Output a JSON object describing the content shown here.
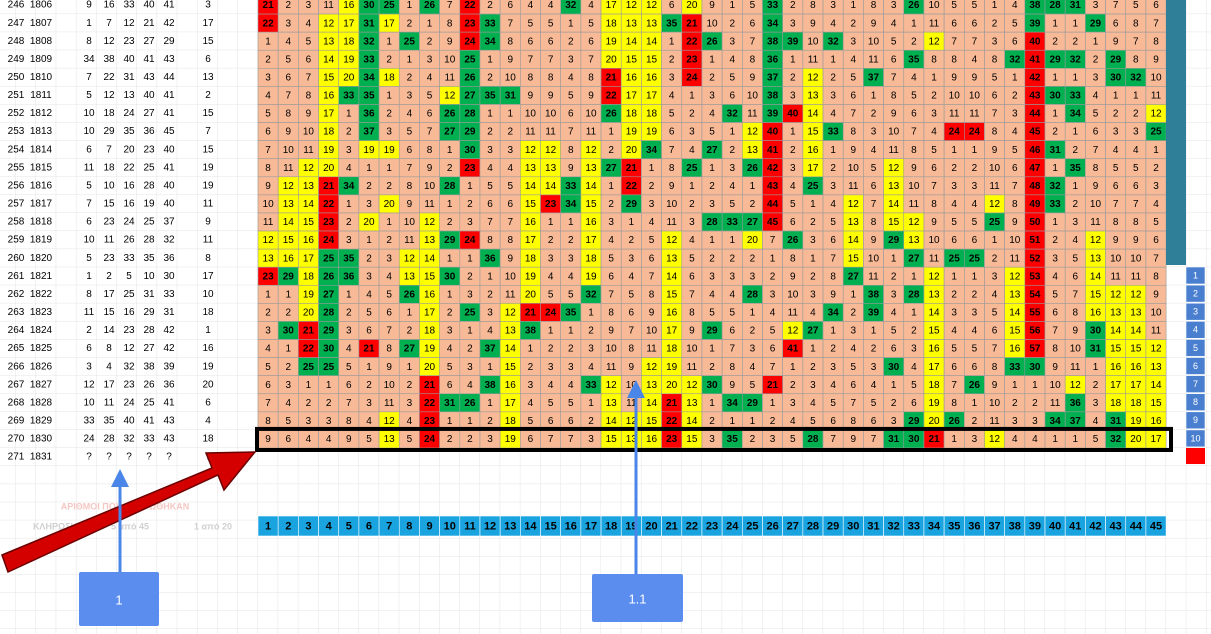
{
  "rows": [
    {
      "row": "246",
      "draw": "1806",
      "numbers": [
        9,
        16,
        33,
        40,
        41
      ],
      "joker": 3,
      "delays": [
        21,
        2,
        3,
        11,
        16,
        30,
        25,
        1,
        26,
        7,
        22,
        2,
        6,
        4,
        4,
        32,
        4,
        17,
        12,
        12,
        6,
        20,
        9,
        1,
        5,
        33,
        2,
        8,
        3,
        1,
        8,
        3,
        26,
        10,
        5,
        5,
        1,
        4,
        38,
        28,
        31,
        3,
        7,
        5,
        6
      ]
    },
    {
      "row": "247",
      "draw": "1807",
      "numbers": [
        1,
        7,
        12,
        21,
        42
      ],
      "joker": 17,
      "delays": [
        22,
        3,
        4,
        12,
        17,
        31,
        17,
        2,
        1,
        8,
        23,
        33,
        7,
        5,
        5,
        1,
        5,
        18,
        13,
        13,
        35,
        21,
        10,
        2,
        6,
        34,
        3,
        9,
        4,
        2,
        9,
        4,
        1,
        11,
        6,
        6,
        2,
        5,
        39,
        1,
        1,
        29,
        6,
        8,
        7
      ]
    },
    {
      "row": "248",
      "draw": "1808",
      "numbers": [
        8,
        12,
        23,
        27,
        29
      ],
      "joker": 15,
      "delays": [
        1,
        4,
        5,
        13,
        18,
        32,
        1,
        25,
        2,
        9,
        24,
        34,
        8,
        6,
        6,
        2,
        6,
        19,
        14,
        14,
        1,
        22,
        26,
        3,
        7,
        38,
        39,
        10,
        32,
        3,
        10,
        5,
        2,
        12,
        7,
        7,
        3,
        6,
        40,
        2,
        2,
        1,
        9,
        7,
        8
      ]
    },
    {
      "row": "249",
      "draw": "1809",
      "numbers": [
        34,
        38,
        40,
        41,
        43
      ],
      "joker": 6,
      "delays": [
        2,
        5,
        6,
        14,
        19,
        33,
        2,
        1,
        3,
        10,
        25,
        1,
        9,
        7,
        7,
        3,
        7,
        20,
        15,
        15,
        2,
        23,
        1,
        4,
        8,
        36,
        1,
        11,
        1,
        4,
        11,
        6,
        35,
        8,
        8,
        4,
        8,
        32,
        41,
        29,
        32,
        2,
        29,
        8,
        9
      ]
    },
    {
      "row": "250",
      "draw": "1810",
      "numbers": [
        7,
        22,
        31,
        43,
        44
      ],
      "joker": 13,
      "delays": [
        3,
        6,
        7,
        15,
        20,
        34,
        18,
        2,
        4,
        11,
        26,
        2,
        10,
        8,
        8,
        4,
        8,
        21,
        16,
        16,
        3,
        24,
        2,
        5,
        9,
        37,
        2,
        12,
        2,
        5,
        37,
        7,
        4,
        1,
        9,
        9,
        5,
        1,
        42,
        1,
        1,
        3,
        30,
        32,
        10
      ]
    },
    {
      "row": "251",
      "draw": "1811",
      "numbers": [
        5,
        12,
        13,
        40,
        41
      ],
      "joker": 2,
      "delays": [
        4,
        7,
        8,
        16,
        33,
        35,
        1,
        3,
        5,
        12,
        27,
        35,
        31,
        9,
        9,
        5,
        9,
        22,
        17,
        17,
        4,
        1,
        3,
        6,
        10,
        38,
        3,
        13,
        3,
        6,
        1,
        8,
        5,
        2,
        10,
        10,
        6,
        2,
        43,
        30,
        33,
        4,
        1,
        1,
        11
      ]
    },
    {
      "row": "252",
      "draw": "1812",
      "numbers": [
        10,
        18,
        24,
        27,
        41
      ],
      "joker": 15,
      "delays": [
        5,
        8,
        9,
        17,
        1,
        36,
        2,
        4,
        6,
        26,
        28,
        1,
        1,
        10,
        10,
        6,
        10,
        26,
        18,
        18,
        5,
        2,
        4,
        32,
        11,
        39,
        40,
        14,
        4,
        7,
        2,
        9,
        6,
        3,
        11,
        11,
        7,
        3,
        44,
        1,
        34,
        5,
        2,
        2,
        12
      ]
    },
    {
      "row": "253",
      "draw": "1813",
      "numbers": [
        10,
        29,
        35,
        36,
        45
      ],
      "joker": 7,
      "delays": [
        6,
        9,
        10,
        18,
        2,
        37,
        3,
        5,
        7,
        27,
        29,
        2,
        2,
        11,
        11,
        7,
        11,
        1,
        19,
        19,
        6,
        3,
        5,
        1,
        12,
        40,
        1,
        15,
        33,
        8,
        3,
        10,
        7,
        4,
        24,
        24,
        8,
        4,
        45,
        2,
        1,
        6,
        3,
        3,
        25
      ]
    },
    {
      "row": "254",
      "draw": "1814",
      "numbers": [
        6,
        7,
        20,
        23,
        40
      ],
      "joker": 15,
      "delays": [
        7,
        10,
        11,
        19,
        3,
        19,
        19,
        6,
        8,
        1,
        30,
        3,
        3,
        12,
        12,
        8,
        12,
        2,
        20,
        34,
        7,
        4,
        27,
        2,
        13,
        41,
        2,
        16,
        1,
        9,
        4,
        11,
        8,
        5,
        1,
        1,
        9,
        5,
        46,
        31,
        2,
        7,
        4,
        4,
        1
      ]
    },
    {
      "row": "255",
      "draw": "1815",
      "numbers": [
        11,
        18,
        22,
        25,
        41
      ],
      "joker": 19,
      "delays": [
        8,
        11,
        12,
        20,
        4,
        1,
        1,
        7,
        9,
        2,
        23,
        4,
        4,
        13,
        13,
        9,
        13,
        27,
        21,
        1,
        8,
        25,
        1,
        3,
        26,
        42,
        3,
        17,
        2,
        10,
        5,
        12,
        9,
        6,
        2,
        2,
        10,
        6,
        47,
        1,
        35,
        8,
        5,
        5,
        2
      ]
    },
    {
      "row": "256",
      "draw": "1816",
      "numbers": [
        5,
        10,
        16,
        28,
        40
      ],
      "joker": 19,
      "delays": [
        9,
        12,
        13,
        21,
        34,
        2,
        2,
        8,
        10,
        28,
        1,
        5,
        5,
        14,
        14,
        33,
        14,
        1,
        22,
        2,
        9,
        1,
        2,
        4,
        1,
        43,
        4,
        25,
        3,
        11,
        6,
        13,
        10,
        7,
        3,
        3,
        11,
        7,
        48,
        32,
        1,
        9,
        6,
        6,
        3
      ]
    },
    {
      "row": "257",
      "draw": "1817",
      "numbers": [
        7,
        15,
        16,
        19,
        40
      ],
      "joker": 11,
      "delays": [
        10,
        13,
        14,
        22,
        1,
        3,
        20,
        9,
        11,
        1,
        2,
        6,
        6,
        15,
        23,
        34,
        15,
        2,
        29,
        3,
        10,
        2,
        3,
        5,
        2,
        44,
        5,
        1,
        4,
        12,
        7,
        14,
        11,
        8,
        4,
        4,
        12,
        8,
        49,
        33,
        2,
        10,
        7,
        7,
        4
      ]
    },
    {
      "row": "258",
      "draw": "1818",
      "numbers": [
        6,
        23,
        24,
        25,
        37
      ],
      "joker": 9,
      "delays": [
        11,
        14,
        15,
        23,
        2,
        20,
        1,
        10,
        12,
        2,
        3,
        7,
        7,
        16,
        1,
        1,
        16,
        3,
        1,
        4,
        11,
        3,
        28,
        33,
        27,
        45,
        6,
        2,
        5,
        13,
        8,
        15,
        12,
        9,
        5,
        5,
        25,
        9,
        50,
        1,
        3,
        11,
        8,
        8,
        5
      ]
    },
    {
      "row": "259",
      "draw": "1819",
      "numbers": [
        10,
        11,
        26,
        28,
        32
      ],
      "joker": 11,
      "delays": [
        12,
        15,
        16,
        24,
        3,
        1,
        2,
        11,
        13,
        29,
        24,
        8,
        8,
        17,
        2,
        2,
        17,
        4,
        2,
        5,
        12,
        4,
        1,
        1,
        20,
        7,
        26,
        3,
        6,
        14,
        9,
        29,
        13,
        10,
        6,
        6,
        1,
        10,
        51,
        2,
        4,
        12,
        9,
        9,
        6
      ]
    },
    {
      "row": "260",
      "draw": "1820",
      "numbers": [
        5,
        23,
        33,
        35,
        36
      ],
      "joker": 8,
      "delays": [
        13,
        16,
        17,
        25,
        35,
        2,
        3,
        12,
        14,
        1,
        1,
        36,
        9,
        18,
        3,
        3,
        18,
        5,
        3,
        6,
        13,
        5,
        2,
        2,
        2,
        1,
        8,
        1,
        7,
        15,
        10,
        1,
        27,
        11,
        25,
        25,
        2,
        11,
        52,
        3,
        5,
        13,
        10,
        10,
        7
      ]
    },
    {
      "row": "261",
      "draw": "1821",
      "numbers": [
        1,
        2,
        5,
        10,
        30
      ],
      "joker": 17,
      "delays": [
        23,
        29,
        18,
        26,
        36,
        3,
        4,
        13,
        15,
        30,
        2,
        1,
        10,
        19,
        4,
        4,
        19,
        6,
        4,
        7,
        14,
        6,
        3,
        3,
        3,
        2,
        9,
        2,
        8,
        27,
        11,
        2,
        1,
        12,
        1,
        1,
        3,
        12,
        53,
        4,
        6,
        14,
        11,
        11,
        8
      ]
    },
    {
      "row": "262",
      "draw": "1822",
      "numbers": [
        8,
        17,
        25,
        31,
        33
      ],
      "joker": 10,
      "delays": [
        1,
        1,
        19,
        27,
        1,
        4,
        5,
        26,
        16,
        1,
        3,
        2,
        11,
        20,
        5,
        5,
        32,
        7,
        5,
        8,
        15,
        7,
        4,
        4,
        28,
        3,
        10,
        3,
        9,
        1,
        38,
        3,
        28,
        13,
        2,
        2,
        4,
        13,
        54,
        5,
        7,
        15,
        12,
        12,
        9
      ]
    },
    {
      "row": "263",
      "draw": "1823",
      "numbers": [
        11,
        15,
        16,
        29,
        31
      ],
      "joker": 18,
      "delays": [
        2,
        2,
        20,
        28,
        2,
        5,
        6,
        1,
        17,
        2,
        25,
        3,
        12,
        21,
        24,
        35,
        1,
        8,
        6,
        9,
        16,
        8,
        5,
        5,
        1,
        4,
        11,
        4,
        34,
        2,
        39,
        4,
        1,
        14,
        3,
        3,
        5,
        14,
        55,
        6,
        8,
        16,
        13,
        13,
        10
      ]
    },
    {
      "row": "264",
      "draw": "1824",
      "numbers": [
        2,
        14,
        23,
        28,
        42
      ],
      "joker": 1,
      "delays": [
        3,
        30,
        21,
        29,
        3,
        6,
        7,
        2,
        18,
        3,
        1,
        4,
        13,
        38,
        1,
        1,
        2,
        9,
        7,
        10,
        17,
        9,
        29,
        6,
        2,
        5,
        12,
        27,
        1,
        3,
        1,
        5,
        2,
        15,
        4,
        4,
        6,
        15,
        56,
        7,
        9,
        30,
        14,
        14,
        11
      ]
    },
    {
      "row": "265",
      "draw": "1825",
      "numbers": [
        6,
        8,
        12,
        27,
        42
      ],
      "joker": 16,
      "delays": [
        4,
        1,
        22,
        30,
        4,
        21,
        8,
        27,
        19,
        4,
        2,
        37,
        14,
        1,
        2,
        2,
        3,
        10,
        8,
        11,
        18,
        10,
        1,
        7,
        3,
        6,
        41,
        1,
        2,
        4,
        2,
        6,
        3,
        16,
        5,
        5,
        7,
        16,
        57,
        8,
        10,
        31,
        15,
        15,
        12
      ]
    },
    {
      "row": "266",
      "draw": "1826",
      "numbers": [
        3,
        4,
        32,
        38,
        39
      ],
      "joker": 19,
      "delays": [
        5,
        2,
        25,
        25,
        5,
        1,
        9,
        1,
        20,
        5,
        3,
        1,
        15,
        2,
        3,
        3,
        4,
        11,
        9,
        12,
        19,
        11,
        2,
        8,
        4,
        7,
        1,
        2,
        3,
        5,
        3,
        30,
        4,
        17,
        6,
        6,
        8,
        33,
        30,
        9,
        11,
        1,
        16,
        16,
        13
      ]
    },
    {
      "row": "267",
      "draw": "1827",
      "numbers": [
        12,
        17,
        23,
        26,
        36
      ],
      "joker": 20,
      "delays": [
        6,
        3,
        1,
        1,
        6,
        2,
        10,
        2,
        21,
        6,
        4,
        38,
        16,
        3,
        4,
        4,
        33,
        12,
        10,
        13,
        20,
        12,
        30,
        9,
        5,
        21,
        2,
        3,
        4,
        6,
        4,
        1,
        5,
        18,
        7,
        26,
        9,
        1,
        1,
        10,
        12,
        2,
        17,
        17,
        14
      ]
    },
    {
      "row": "268",
      "draw": "1828",
      "numbers": [
        10,
        11,
        24,
        25,
        41
      ],
      "joker": 6,
      "delays": [
        7,
        4,
        2,
        2,
        7,
        3,
        11,
        3,
        22,
        31,
        26,
        1,
        17,
        4,
        5,
        5,
        1,
        13,
        11,
        14,
        21,
        13,
        1,
        34,
        29,
        1,
        3,
        4,
        5,
        7,
        5,
        2,
        6,
        19,
        8,
        1,
        10,
        2,
        2,
        11,
        36,
        3,
        18,
        18,
        15
      ]
    },
    {
      "row": "269",
      "draw": "1829",
      "numbers": [
        33,
        35,
        40,
        41,
        43
      ],
      "joker": 4,
      "delays": [
        8,
        5,
        3,
        3,
        8,
        4,
        12,
        4,
        23,
        1,
        1,
        2,
        18,
        5,
        6,
        6,
        2,
        14,
        12,
        15,
        22,
        14,
        2,
        1,
        1,
        2,
        4,
        5,
        6,
        8,
        6,
        3,
        29,
        20,
        26,
        2,
        11,
        3,
        3,
        34,
        37,
        4,
        31,
        19,
        16
      ]
    },
    {
      "row": "270",
      "draw": "1830",
      "numbers": [
        24,
        28,
        32,
        33,
        43
      ],
      "joker": 18,
      "delays": [
        9,
        6,
        4,
        4,
        9,
        5,
        13,
        5,
        24,
        2,
        2,
        3,
        19,
        6,
        7,
        7,
        3,
        15,
        13,
        16,
        23,
        15,
        3,
        35,
        2,
        3,
        5,
        28,
        7,
        9,
        7,
        31,
        30,
        21,
        1,
        3,
        12,
        4,
        4,
        1,
        1,
        5,
        32,
        20,
        17
      ]
    }
  ],
  "next_row": {
    "row": "271",
    "draw": "1831",
    "numbers": [
      "?",
      "?",
      "?",
      "?",
      "?"
    ],
    "joker": "?"
  },
  "column_numbers": [
    1,
    2,
    3,
    4,
    5,
    6,
    7,
    8,
    9,
    10,
    11,
    12,
    13,
    14,
    15,
    16,
    17,
    18,
    19,
    20,
    21,
    22,
    23,
    24,
    25,
    26,
    27,
    28,
    29,
    30,
    31,
    32,
    33,
    34,
    35,
    36,
    37,
    38,
    39,
    40,
    41,
    42,
    43,
    44,
    45
  ],
  "side_numbers": [
    1,
    2,
    3,
    4,
    5,
    6,
    7,
    8,
    9,
    10
  ],
  "labels": {
    "drawn_numbers": "ΑΡΙΘΜΟΙ ΠΟΥ ΚΛΗΡΩΘΗΚΑΝ",
    "draw": "ΚΛΗΡΩΣΗ",
    "five_of_45": "5 από 45",
    "one_of_20": "1 από 20"
  },
  "callouts": [
    "1",
    "1.1"
  ],
  "cell_colors": {
    "low": "#f7b996",
    "mid": "#ffff00",
    "high": "#00b050",
    "hot": "#ff0000",
    "header": "#19a4e0",
    "side": "#4a7fd0",
    "stripe": "#2f7f98",
    "marker": "#ff0000"
  }
}
